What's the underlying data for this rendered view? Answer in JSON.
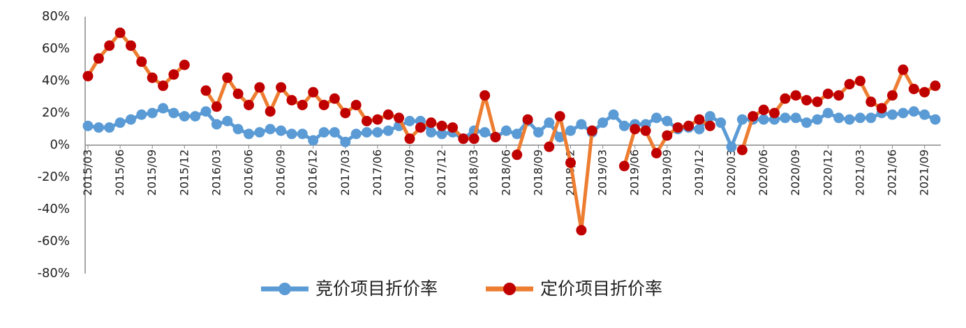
{
  "chart_data": {
    "type": "line",
    "title": "",
    "xlabel": "",
    "ylabel": "",
    "ylim": [
      -80,
      80
    ],
    "yticks": [
      "80%",
      "60%",
      "40%",
      "20%",
      "0%",
      "-20%",
      "-40%",
      "-60%",
      "-80%"
    ],
    "ytick_values": [
      80,
      60,
      40,
      20,
      0,
      -20,
      -40,
      -60,
      -80
    ],
    "x": [
      "2015/03",
      "2015/04",
      "2015/05",
      "2015/06",
      "2015/07",
      "2015/08",
      "2015/09",
      "2015/10",
      "2015/11",
      "2015/12",
      "2016/01",
      "2016/02",
      "2016/03",
      "2016/04",
      "2016/05",
      "2016/06",
      "2016/07",
      "2016/08",
      "2016/09",
      "2016/10",
      "2016/11",
      "2016/12",
      "2017/01",
      "2017/02",
      "2017/03",
      "2017/04",
      "2017/05",
      "2017/06",
      "2017/07",
      "2017/08",
      "2017/09",
      "2017/10",
      "2017/11",
      "2017/12",
      "2018/01",
      "2018/02",
      "2018/03",
      "2018/04",
      "2018/05",
      "2018/06",
      "2018/07",
      "2018/08",
      "2018/09",
      "2018/10",
      "2018/11",
      "2018/12",
      "2019/01",
      "2019/02",
      "2019/03",
      "2019/04",
      "2019/05",
      "2019/06",
      "2019/07",
      "2019/08",
      "2019/09",
      "2019/10",
      "2019/11",
      "2019/12",
      "2020/01",
      "2020/02",
      "2020/03",
      "2020/04",
      "2020/05",
      "2020/06",
      "2020/07",
      "2020/08",
      "2020/09",
      "2020/10",
      "2020/11",
      "2020/12",
      "2021/01",
      "2021/02",
      "2021/03",
      "2021/04",
      "2021/05",
      "2021/06",
      "2021/07",
      "2021/08",
      "2021/09",
      "2021/10"
    ],
    "xtick_labels": [
      "2015/03",
      "2015/06",
      "2015/09",
      "2015/12",
      "2016/03",
      "2016/06",
      "2016/09",
      "2016/12",
      "2017/03",
      "2017/06",
      "2017/09",
      "2017/12",
      "2018/03",
      "2018/06",
      "2018/09",
      "2018/12",
      "2019/03",
      "2019/06",
      "2019/09",
      "2019/12",
      "2020/03",
      "2020/06",
      "2020/09",
      "2020/12",
      "2021/03",
      "2021/06",
      "2021/09"
    ],
    "legend_position": "bottom",
    "grid": false,
    "series": [
      {
        "name": "竞价项目折价率",
        "color": "#5B9BD5",
        "marker_color": "#5B9BD5",
        "values": [
          12,
          11,
          11,
          14,
          16,
          19,
          20,
          23,
          20,
          18,
          18,
          21,
          13,
          15,
          10,
          7,
          8,
          10,
          9,
          7,
          7,
          3,
          8,
          8,
          2,
          7,
          8,
          8,
          9,
          12,
          15,
          15,
          8,
          7,
          8,
          4,
          9,
          8,
          5,
          9,
          7,
          15,
          8,
          14,
          5,
          9,
          13,
          8,
          14,
          19,
          12,
          13,
          13,
          17,
          15,
          10,
          11,
          10,
          18,
          14,
          -1,
          16,
          16,
          16,
          16,
          17,
          17,
          14,
          16,
          20,
          17,
          16,
          17,
          17,
          20,
          19,
          20,
          21,
          19,
          16
        ]
      },
      {
        "name": "定价项目折价率",
        "color": "#ED7D31",
        "marker_color": "#C00000",
        "values": [
          43,
          54,
          62,
          70,
          62,
          52,
          42,
          37,
          44,
          50,
          null,
          34,
          24,
          42,
          32,
          25,
          36,
          21,
          36,
          28,
          25,
          33,
          25,
          29,
          20,
          25,
          15,
          16,
          19,
          17,
          4,
          11,
          14,
          12,
          11,
          4,
          4,
          31,
          5,
          null,
          -6,
          16,
          null,
          -1,
          18,
          -11,
          -53,
          9,
          null,
          null,
          -13,
          10,
          9,
          -5,
          6,
          11,
          12,
          16,
          12,
          null,
          null,
          -3,
          18,
          22,
          20,
          29,
          31,
          28,
          27,
          32,
          31,
          38,
          40,
          27,
          23,
          31,
          47,
          35,
          33,
          37
        ]
      }
    ]
  }
}
